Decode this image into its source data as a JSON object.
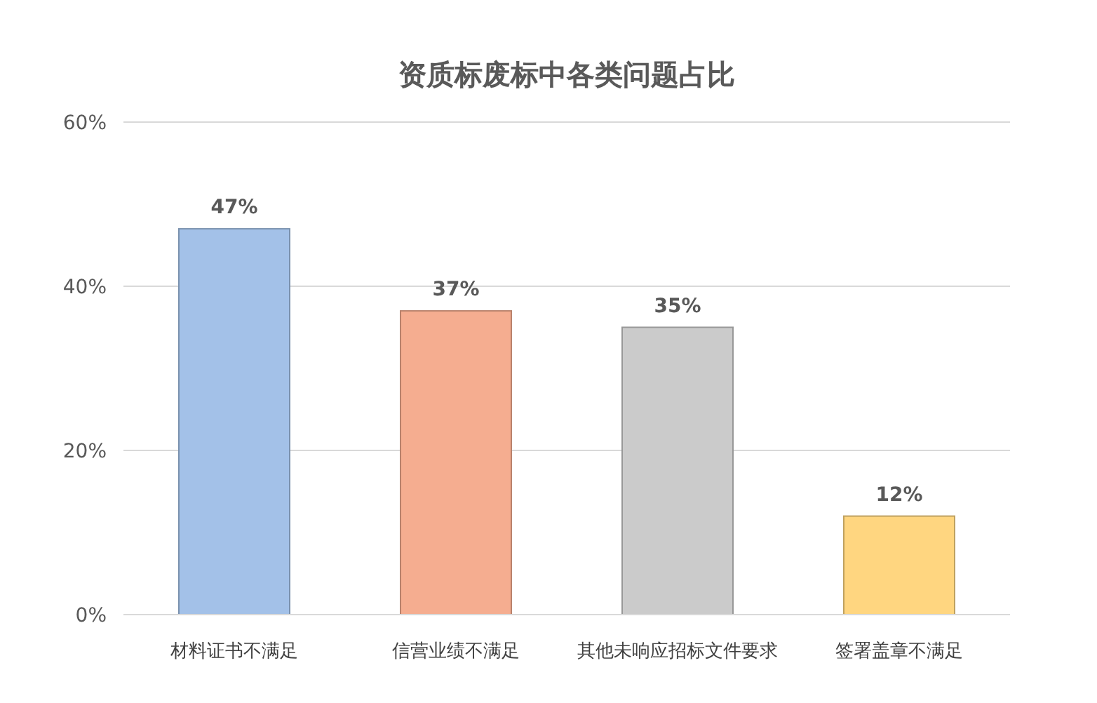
{
  "chart_data": {
    "type": "bar",
    "title": "资质标废标中各类问题占比",
    "categories": [
      "材料证书不满足",
      "信营业绩不满足",
      "其他未响应招标文件要求",
      "签署盖章不满足"
    ],
    "values": [
      47,
      37,
      35,
      12
    ],
    "value_labels": [
      "47%",
      "37%",
      "35%",
      "12%"
    ],
    "colors": [
      "#a3c1e8",
      "#f5ad90",
      "#cbcbcb",
      "#ffd680"
    ],
    "ylim": [
      0,
      60
    ],
    "yticks": [
      {
        "value": 0,
        "label": "0%"
      },
      {
        "value": 20,
        "label": "20%"
      },
      {
        "value": 40,
        "label": "40%"
      },
      {
        "value": 60,
        "label": "60%"
      }
    ],
    "grid": "y"
  }
}
